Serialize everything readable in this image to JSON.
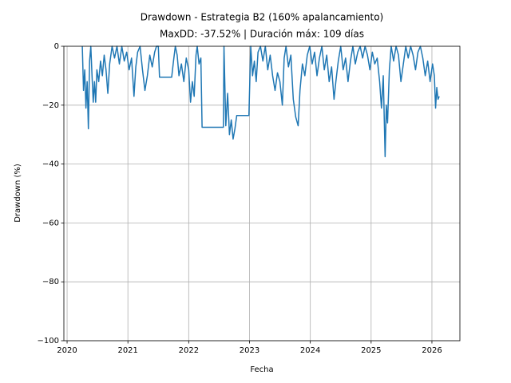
{
  "chart_data": {
    "type": "line",
    "title": "Drawdown - Estrategia B2 (160% apalancamiento)",
    "subtitle": "MaxDD: -37.52% | Duración máx: 109 días",
    "x_label": "Fecha",
    "y_label": "Drawdown (%)",
    "grid": true,
    "xlim": [
      2019.947,
      2026.46
    ],
    "xticks": [
      2020,
      2021,
      2022,
      2023,
      2024,
      2025,
      2026
    ],
    "ylim": [
      -100,
      0
    ],
    "yticks": [
      {
        "value": -100,
        "label": "−100"
      },
      {
        "value": -80,
        "label": "−80"
      },
      {
        "value": -60,
        "label": "−60"
      },
      {
        "value": -40,
        "label": "−40"
      },
      {
        "value": -20,
        "label": "−20"
      },
      0
    ],
    "x": [
      2020.25,
      2020.27,
      2020.29,
      2020.31,
      2020.33,
      2020.35,
      2020.37,
      2020.39,
      2020.41,
      2020.43,
      2020.45,
      2020.47,
      2020.49,
      2020.52,
      2020.55,
      2020.58,
      2020.61,
      2020.64,
      2020.67,
      2020.7,
      2020.74,
      2020.78,
      2020.82,
      2020.86,
      2020.9,
      2020.94,
      2020.98,
      2021.02,
      2021.06,
      2021.1,
      2021.13,
      2021.16,
      2021.2,
      2021.24,
      2021.28,
      2021.32,
      2021.36,
      2021.4,
      2021.44,
      2021.47,
      2021.5,
      2021.52,
      2021.72,
      2021.75,
      2021.78,
      2021.81,
      2021.84,
      2021.88,
      2021.92,
      2021.96,
      2022.0,
      2022.03,
      2022.06,
      2022.09,
      2022.12,
      2022.14,
      2022.17,
      2022.2,
      2022.22,
      2022.57,
      2022.58,
      2022.61,
      2022.64,
      2022.67,
      2022.7,
      2022.73,
      2022.76,
      2022.79,
      2022.99,
      2023.02,
      2023.05,
      2023.08,
      2023.11,
      2023.14,
      2023.18,
      2023.22,
      2023.26,
      2023.3,
      2023.34,
      2023.38,
      2023.42,
      2023.46,
      2023.5,
      2023.54,
      2023.57,
      2023.6,
      2023.64,
      2023.68,
      2023.72,
      2023.76,
      2023.8,
      2023.83,
      2023.87,
      2023.91,
      2023.95,
      2023.99,
      2024.03,
      2024.07,
      2024.11,
      2024.15,
      2024.19,
      2024.23,
      2024.27,
      2024.31,
      2024.35,
      2024.39,
      2024.42,
      2024.46,
      2024.5,
      2024.54,
      2024.58,
      2024.62,
      2024.66,
      2024.7,
      2024.74,
      2024.78,
      2024.82,
      2024.86,
      2024.9,
      2024.94,
      2024.98,
      2025.02,
      2025.06,
      2025.1,
      2025.14,
      2025.17,
      2025.2,
      2025.23,
      2025.25,
      2025.27,
      2025.3,
      2025.33,
      2025.37,
      2025.41,
      2025.45,
      2025.49,
      2025.53,
      2025.57,
      2025.61,
      2025.65,
      2025.69,
      2025.73,
      2025.77,
      2025.81,
      2025.85,
      2025.89,
      2025.93,
      2025.97,
      2026.01,
      2026.04,
      2026.06,
      2026.08,
      2026.1,
      2026.12
    ],
    "series": [
      {
        "color": "#1f77b4",
        "values": [
          0,
          -15,
          -8,
          -21,
          -12,
          -28,
          -5,
          0,
          -10,
          -19,
          -12,
          -19,
          -8,
          -12,
          -5,
          -10,
          -3,
          -8,
          -16,
          -6,
          0,
          -4,
          0,
          -6,
          0,
          -5,
          -2,
          -8,
          -4,
          -17,
          -7,
          -2,
          0,
          -8,
          -15,
          -10,
          -3,
          -7,
          -2,
          0,
          0,
          -10.5,
          -10.5,
          -5,
          0,
          -3,
          -10,
          -6,
          -12,
          -4,
          -8,
          -19,
          -12,
          -17,
          -3,
          0,
          -6,
          -4,
          -27.5,
          -27.5,
          0,
          -27,
          -16,
          -30,
          -25,
          -31.5,
          -28,
          -23.5,
          -23.5,
          0,
          -10,
          -5,
          -12,
          -2,
          0,
          -5,
          0,
          -8,
          -3,
          -10,
          -15,
          -9,
          -12,
          -20,
          -4,
          0,
          -7,
          -3,
          -18,
          -24,
          -27,
          -15,
          -6,
          -10,
          -3,
          0,
          -6,
          -2,
          -10,
          -4,
          0,
          -8,
          -3,
          -12,
          -7,
          -18,
          -12,
          -5,
          0,
          -8,
          -4,
          -12,
          -5,
          0,
          -6,
          -2,
          0,
          -4,
          0,
          -3,
          -8,
          -2,
          -6,
          -4,
          -12,
          -21,
          -10,
          -37.5,
          -20,
          -26,
          -8,
          0,
          -5,
          0,
          -3,
          -12,
          -6,
          0,
          -4,
          0,
          -3,
          -8,
          -2,
          0,
          -4,
          -10,
          -5,
          -12,
          -6,
          -10,
          -21,
          -14,
          -18,
          -17
        ]
      }
    ]
  }
}
